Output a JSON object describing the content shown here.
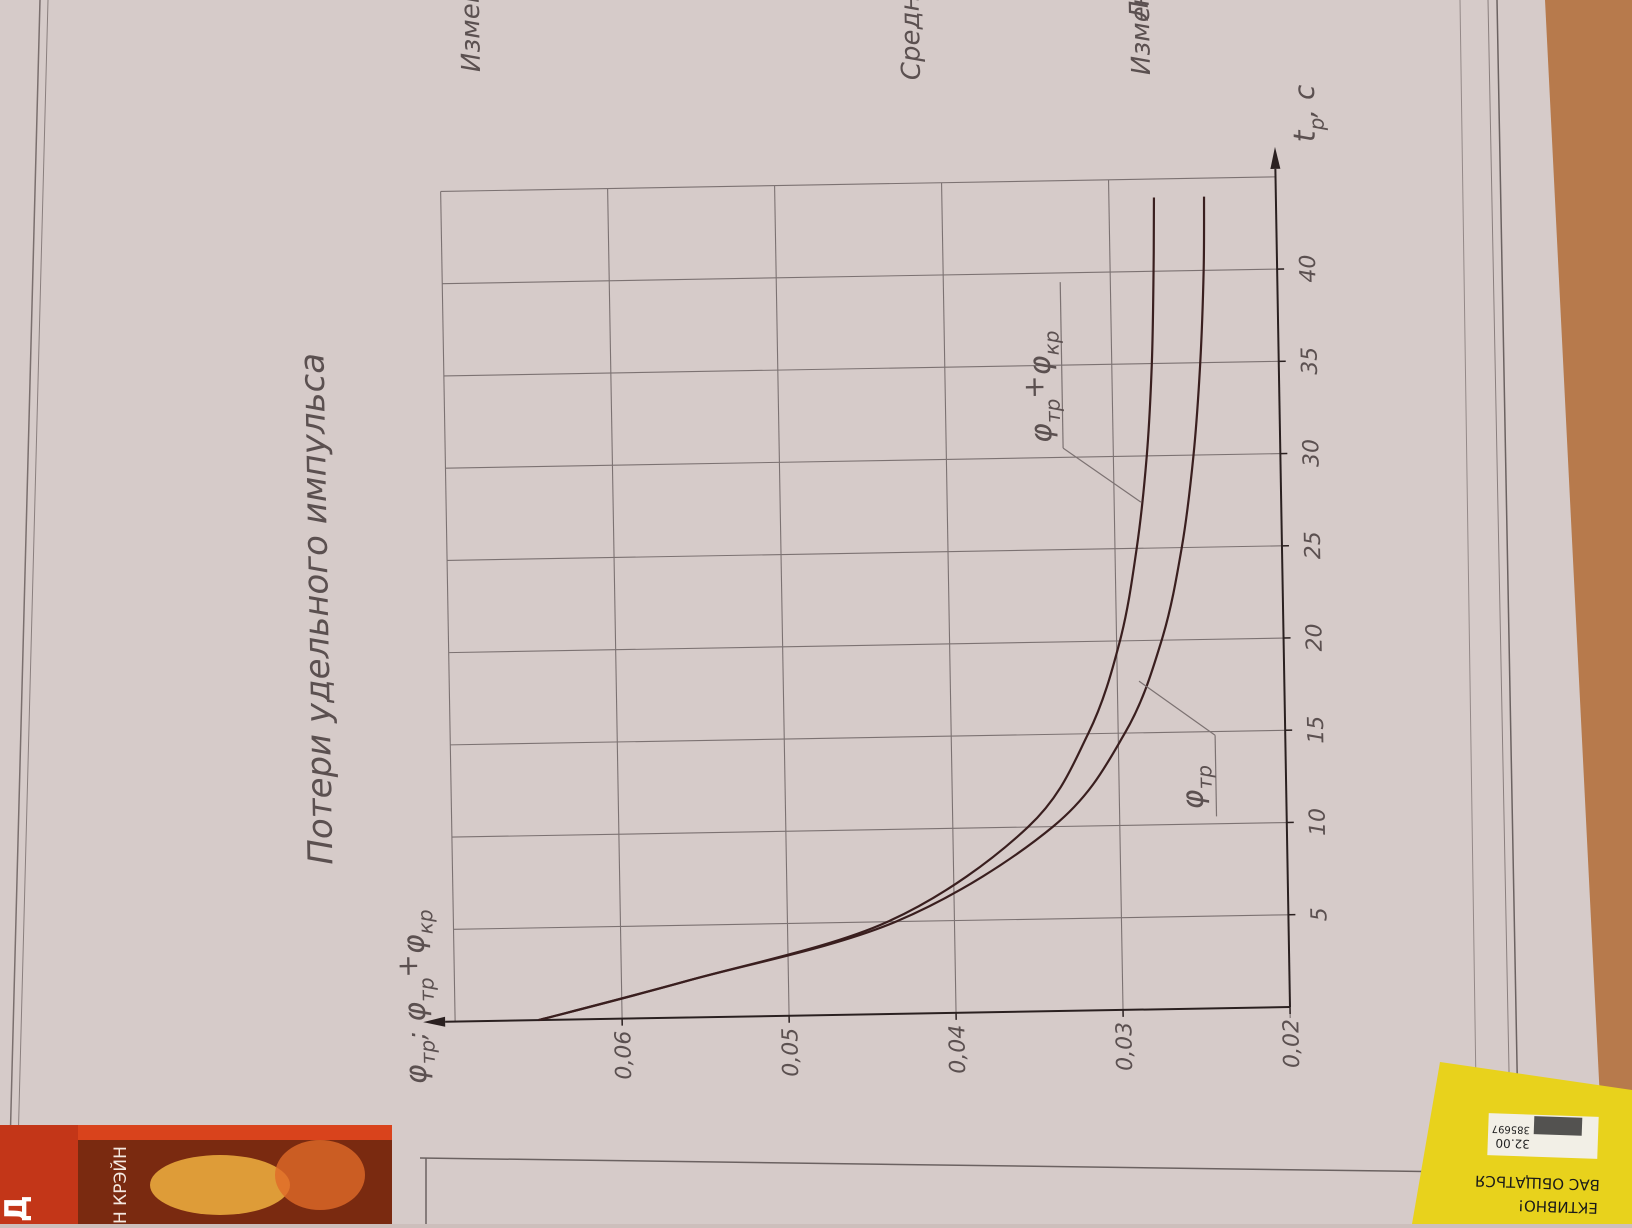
{
  "chart_data": {
    "type": "line",
    "title": "Потери удельного импульса",
    "xlabel": "t",
    "xlabel_sub": "р",
    "xlabel_unit": ", с",
    "ylabel_main": "φ",
    "ylabel_main_sub": "тр",
    "ylabel_sep": ";",
    "ylabel_sum": "φ",
    "ylabel_sum_sub1": "тр",
    "ylabel_plus": "+",
    "ylabel_sum_sub2": "кр",
    "xlim": [
      0,
      45
    ],
    "ylim": [
      0.02,
      0.07
    ],
    "x_ticks": [
      5,
      10,
      15,
      20,
      25,
      30,
      35,
      40
    ],
    "x_tick_labels": [
      "5",
      "10",
      "15",
      "20",
      "25",
      "30",
      "35",
      "40"
    ],
    "y_ticks": [
      0.02,
      0.03,
      0.04,
      0.05,
      0.06
    ],
    "y_tick_labels": [
      "0,02",
      "0,03",
      "0,04",
      "0,05",
      "0,06"
    ],
    "grid": true,
    "series": [
      {
        "id": "sum",
        "label_main": "φ",
        "label_sub1": "тр",
        "label_plus": "+",
        "label_sub2": "кр",
        "x": [
          0,
          2,
          5,
          10,
          15,
          20,
          25,
          30,
          35,
          40,
          44
        ],
        "y": [
          0.065,
          0.056,
          0.044,
          0.0355,
          0.0318,
          0.0298,
          0.0287,
          0.028,
          0.0276,
          0.0274,
          0.0273
        ]
      },
      {
        "id": "tr",
        "label_main": "φ",
        "label_sub1": "тр",
        "x": [
          0,
          2,
          5,
          10,
          15,
          20,
          25,
          30,
          35,
          40,
          44
        ],
        "y": [
          0.065,
          0.056,
          0.0435,
          0.034,
          0.0296,
          0.0273,
          0.026,
          0.0252,
          0.0247,
          0.0244,
          0.0243
        ]
      }
    ],
    "colors": {
      "curve": "#3a1f1f",
      "grid": "#7c7272",
      "axis": "#2a2020",
      "paper": "#d9cfcd"
    }
  },
  "margin_text": {
    "top_right_1": "Средн",
    "top_right_2": "Измен",
    "top_right_3": "Измен",
    "top_right_4": "Л"
  },
  "book_left": {
    "author": "Н КРЭЙН",
    "edge": "Д"
  },
  "book_right": {
    "line1": "ВАС ОБЩАТЬСЯ",
    "line2": "ЕКТИВНО!",
    "price": "32.00",
    "code": "385697"
  }
}
